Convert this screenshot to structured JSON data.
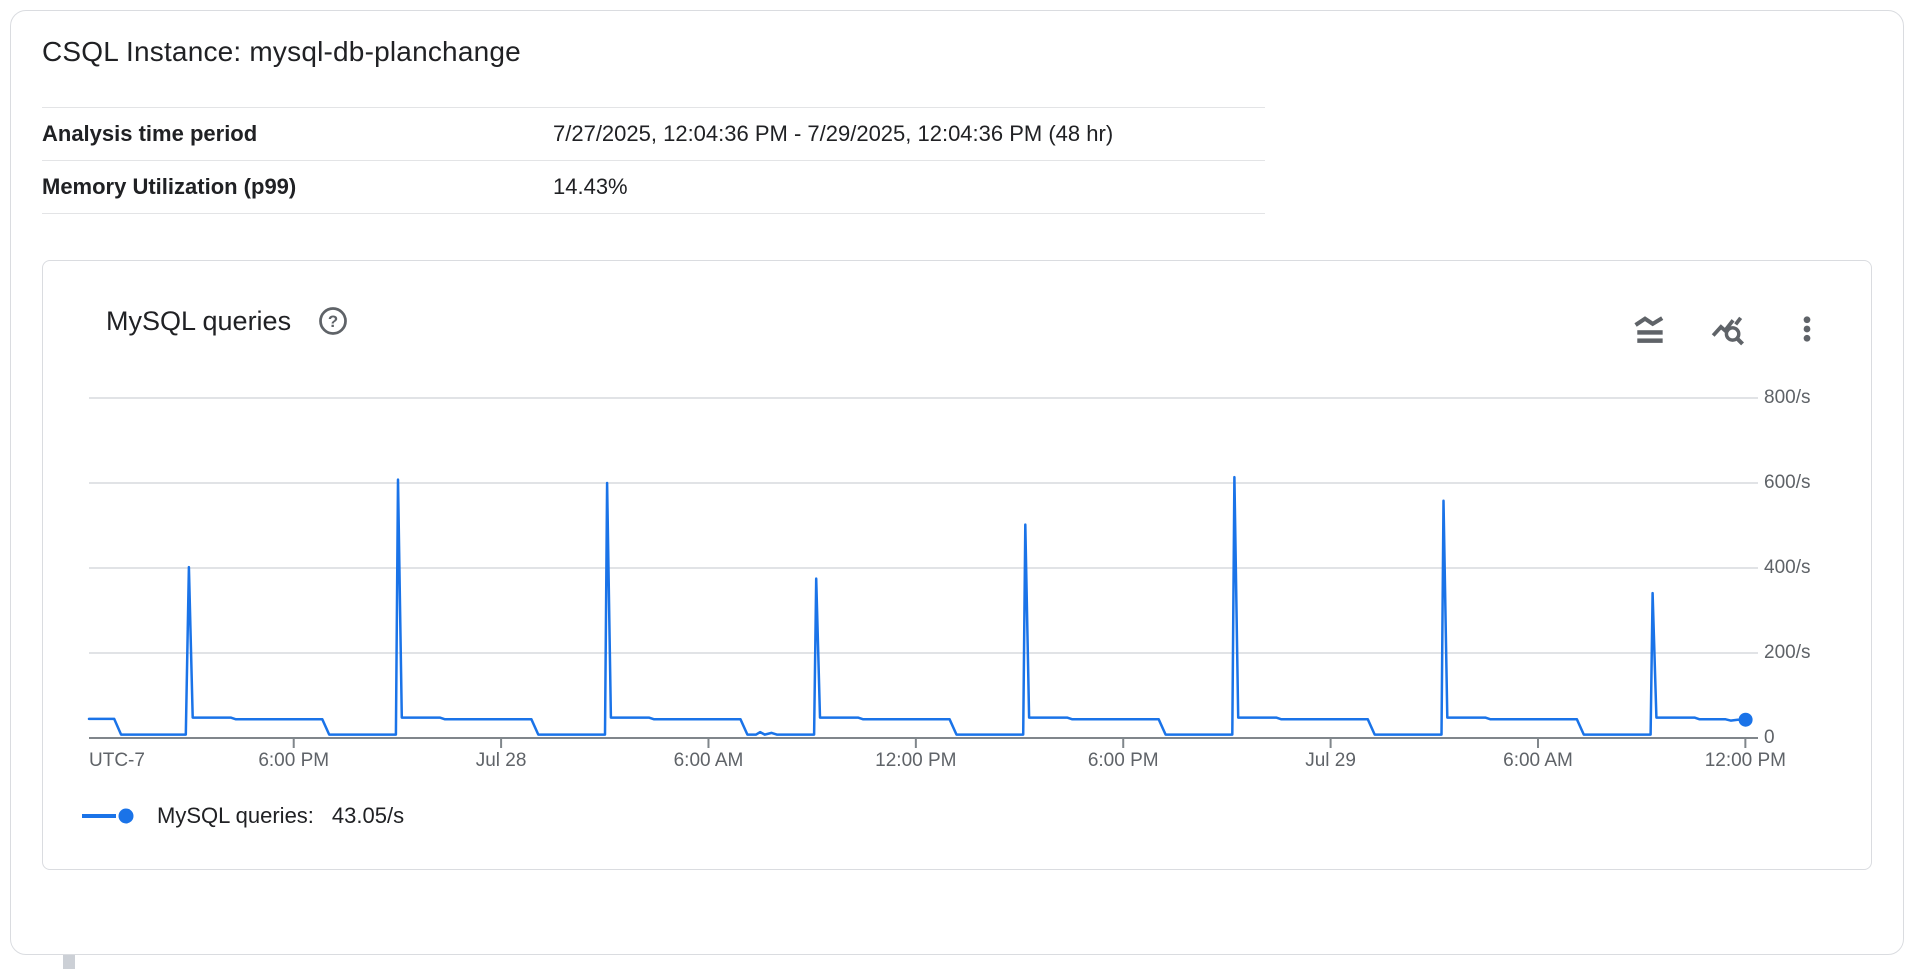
{
  "page": {
    "title": "CSQL Instance: mysql-db-planchange"
  },
  "summary_table": {
    "rows": [
      {
        "label": "Analysis time period",
        "value": "7/27/2025, 12:04:36 PM - 7/29/2025, 12:04:36 PM (48 hr)"
      },
      {
        "label": "Memory Utilization (p99)",
        "value": "14.43%"
      }
    ]
  },
  "chart_card": {
    "title": "MySQL queries",
    "icons": [
      "help-icon",
      "legend-toggle-icon",
      "explore-chart-icon",
      "more-options-icon"
    ],
    "legend": {
      "series_label": "MySQL queries:",
      "value": "43.05/s"
    }
  },
  "colors": {
    "accent_blue": "#1a73e8",
    "border": "#dadce0",
    "gridline": "#e1e3e6",
    "axis": "#80868b",
    "text_primary": "#202124",
    "text_secondary": "#5f6368"
  },
  "chart_data": {
    "type": "line",
    "title": "MySQL queries",
    "unit": "/s",
    "grid": true,
    "legend_position": "bottom-left",
    "ylim": [
      0,
      850
    ],
    "y_ticks": [
      {
        "value": 800,
        "label": "800/s"
      },
      {
        "value": 600,
        "label": "600/s"
      },
      {
        "value": 400,
        "label": "400/s"
      },
      {
        "value": 200,
        "label": "200/s"
      },
      {
        "value": 0,
        "label": "0"
      }
    ],
    "x_axis_span_hours": 48,
    "x_ticks": [
      {
        "hour": 0,
        "label": "UTC-7",
        "tick": false,
        "align": "left"
      },
      {
        "hour": 5.923,
        "label": "6:00 PM"
      },
      {
        "hour": 11.923,
        "label": "Jul 28"
      },
      {
        "hour": 17.923,
        "label": "6:00 AM"
      },
      {
        "hour": 23.923,
        "label": "12:00 PM"
      },
      {
        "hour": 29.923,
        "label": "6:00 PM"
      },
      {
        "hour": 35.923,
        "label": "Jul 29"
      },
      {
        "hour": 41.923,
        "label": "6:00 AM"
      },
      {
        "hour": 47.923,
        "label": "12:00 PM"
      }
    ],
    "series": [
      {
        "name": "MySQL queries",
        "color": "#1a73e8",
        "current_value": 43.05,
        "spike_peaks_per_sec": [
          402,
          608,
          600,
          375,
          502,
          614,
          558,
          341
        ],
        "points_hours_value": [
          [
            0,
            45
          ],
          [
            0.73,
            45
          ],
          [
            0.93,
            8
          ],
          [
            2.8,
            8
          ],
          [
            2.89,
            402
          ],
          [
            3.0,
            48
          ],
          [
            4.1,
            48
          ],
          [
            4.25,
            44
          ],
          [
            6.75,
            44
          ],
          [
            6.95,
            8
          ],
          [
            8.88,
            8
          ],
          [
            8.94,
            608
          ],
          [
            9.05,
            48
          ],
          [
            10.15,
            48
          ],
          [
            10.3,
            44
          ],
          [
            12.8,
            44
          ],
          [
            13.0,
            8
          ],
          [
            14.93,
            8
          ],
          [
            14.99,
            600
          ],
          [
            15.1,
            48
          ],
          [
            16.2,
            48
          ],
          [
            16.35,
            44
          ],
          [
            18.85,
            44
          ],
          [
            19.05,
            8
          ],
          [
            19.3,
            8
          ],
          [
            19.42,
            14
          ],
          [
            19.55,
            8
          ],
          [
            19.75,
            12
          ],
          [
            19.9,
            8
          ],
          [
            20.98,
            8
          ],
          [
            21.04,
            375
          ],
          [
            21.15,
            48
          ],
          [
            22.25,
            48
          ],
          [
            22.4,
            44
          ],
          [
            24.9,
            44
          ],
          [
            25.1,
            8
          ],
          [
            27.03,
            8
          ],
          [
            27.09,
            502
          ],
          [
            27.2,
            48
          ],
          [
            28.3,
            48
          ],
          [
            28.45,
            44
          ],
          [
            30.95,
            44
          ],
          [
            31.15,
            8
          ],
          [
            33.08,
            8
          ],
          [
            33.14,
            614
          ],
          [
            33.25,
            48
          ],
          [
            34.35,
            48
          ],
          [
            34.5,
            44
          ],
          [
            37.0,
            44
          ],
          [
            37.2,
            8
          ],
          [
            39.13,
            8
          ],
          [
            39.19,
            558
          ],
          [
            39.3,
            48
          ],
          [
            40.4,
            48
          ],
          [
            40.55,
            44
          ],
          [
            43.05,
            44
          ],
          [
            43.25,
            8
          ],
          [
            45.18,
            8
          ],
          [
            45.24,
            341
          ],
          [
            45.35,
            48
          ],
          [
            46.45,
            48
          ],
          [
            46.6,
            44
          ],
          [
            47.35,
            44
          ],
          [
            47.5,
            41
          ],
          [
            47.7,
            43
          ],
          [
            47.93,
            43.05
          ]
        ]
      }
    ]
  }
}
